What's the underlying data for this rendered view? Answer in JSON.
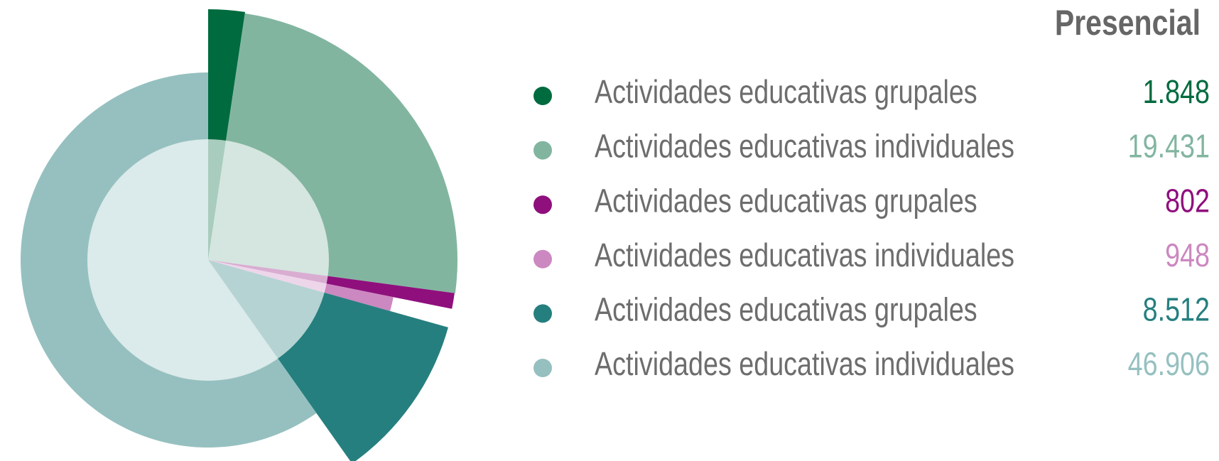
{
  "chart_data": {
    "type": "pie",
    "title": "Presencial",
    "categories": [
      "Actividades educativas grupales",
      "Actividades educativas individuales",
      "Actividades educativas grupales",
      "Actividades educativas individuales",
      "Actividades educativas grupales",
      "Actividades educativas individuales"
    ],
    "values": [
      1848,
      19431,
      802,
      948,
      8512,
      46906
    ],
    "value_labels": [
      "1.848",
      "19.431",
      "802",
      "948",
      "8.512",
      "46.906"
    ],
    "colors": [
      "#006b3f",
      "#82b5a0",
      "#8f0f7d",
      "#cc88c0",
      "#267f7f",
      "#96c0c0"
    ]
  }
}
